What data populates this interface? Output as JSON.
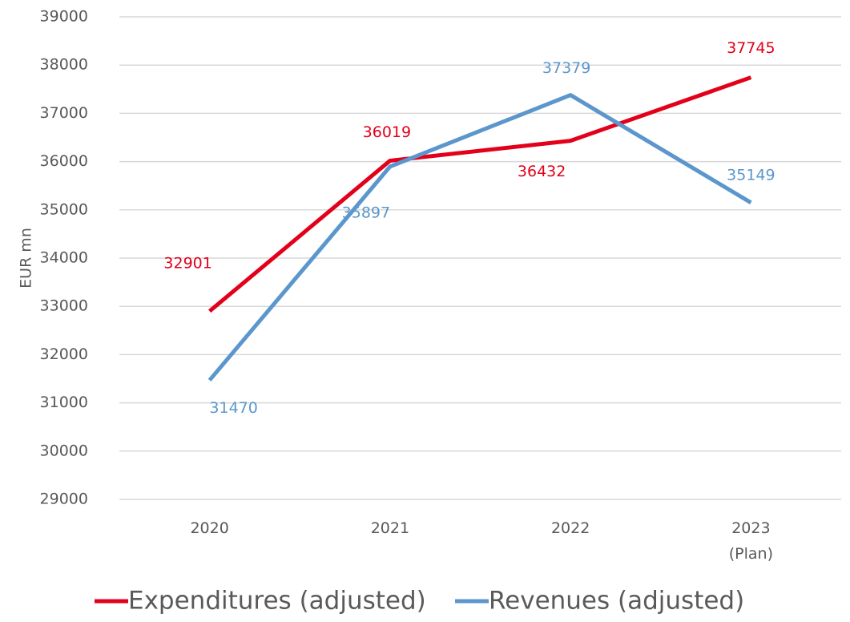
{
  "chart_data": {
    "type": "line",
    "y_label": "EUR mn",
    "categories": [
      "2020",
      "2021",
      "2022",
      "2023 (Plan)"
    ],
    "series": [
      {
        "name": "Expenditures (adjusted)",
        "color": "#e2001a",
        "values": [
          32901,
          36019,
          36432,
          37745
        ]
      },
      {
        "name": "Revenues (adjusted)",
        "color": "#5b96cc",
        "values": [
          31470,
          35897,
          37379,
          35149
        ]
      }
    ],
    "ylim": [
      29000,
      39000
    ],
    "yticks": [
      29000,
      30000,
      31000,
      32000,
      33000,
      34000,
      35000,
      36000,
      37000,
      38000,
      39000
    ],
    "grid": true,
    "legend": "bottom"
  }
}
